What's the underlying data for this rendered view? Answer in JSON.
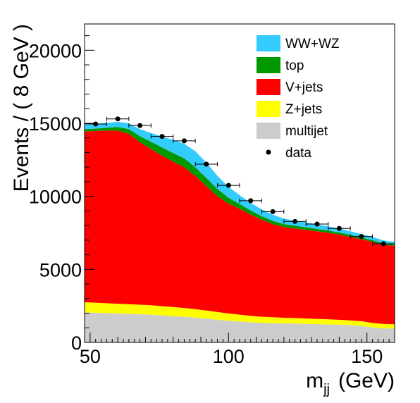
{
  "chart_data": {
    "type": "area",
    "stacked": true,
    "xlabel_main": "m",
    "xlabel_sub": "jj",
    "xlabel_unit": "(GeV)",
    "ylabel": "Events / ( 8 GeV )",
    "xlim": [
      48,
      160
    ],
    "ylim": [
      0,
      21800
    ],
    "xticks": [
      50,
      100,
      150
    ],
    "yticks": [
      0,
      5000,
      10000,
      15000,
      20000
    ],
    "grid": false,
    "legend_position": "top-right",
    "x": [
      48,
      52,
      56,
      60,
      64,
      68,
      72,
      76,
      80,
      84,
      88,
      92,
      96,
      100,
      104,
      108,
      112,
      116,
      120,
      124,
      128,
      132,
      136,
      140,
      144,
      148,
      152,
      156,
      160
    ],
    "series": [
      {
        "name": "multijet",
        "color": "#cccccc",
        "values": [
          2050,
          2030,
          2000,
          1980,
          1960,
          1930,
          1900,
          1850,
          1800,
          1760,
          1700,
          1620,
          1550,
          1480,
          1430,
          1380,
          1340,
          1320,
          1300,
          1290,
          1270,
          1250,
          1230,
          1210,
          1180,
          1130,
          1020,
          960,
          950
        ]
      },
      {
        "name": "Z+jets",
        "color": "#ffff00",
        "values": [
          700,
          690,
          680,
          670,
          660,
          650,
          640,
          630,
          620,
          600,
          580,
          560,
          530,
          500,
          470,
          440,
          420,
          400,
          390,
          380,
          370,
          360,
          350,
          340,
          330,
          320,
          310,
          300,
          290
        ]
      },
      {
        "name": "V+jets",
        "color": "#ff0000",
        "values": [
          11700,
          11750,
          11820,
          11850,
          11650,
          11120,
          10700,
          10300,
          9950,
          9640,
          9120,
          8520,
          7920,
          7520,
          7250,
          6930,
          6640,
          6380,
          6210,
          6130,
          6060,
          5990,
          5920,
          5830,
          5710,
          5600,
          5560,
          5420,
          5370
        ]
      },
      {
        "name": "top",
        "color": "#009900",
        "values": [
          150,
          170,
          200,
          250,
          330,
          420,
          500,
          560,
          600,
          600,
          590,
          560,
          500,
          400,
          330,
          280,
          250,
          220,
          200,
          190,
          180,
          170,
          160,
          150,
          140,
          130,
          120,
          110,
          100
        ]
      },
      {
        "name": "WW+WZ",
        "color": "#33ccff",
        "values": [
          300,
          310,
          330,
          350,
          400,
          480,
          600,
          750,
          900,
          1000,
          1100,
          1050,
          900,
          750,
          600,
          520,
          450,
          420,
          380,
          350,
          330,
          310,
          290,
          270,
          250,
          230,
          210,
          190,
          180
        ]
      }
    ],
    "data_points": {
      "name": "data",
      "color": "#000000",
      "x": [
        52,
        60,
        68,
        76,
        84,
        92,
        100,
        108,
        116,
        124,
        132,
        140,
        148,
        156
      ],
      "y": [
        14950,
        15300,
        14850,
        14100,
        13800,
        12200,
        10750,
        9700,
        8950,
        8280,
        8100,
        7800,
        7250,
        6750
      ],
      "xerr": 4
    }
  }
}
